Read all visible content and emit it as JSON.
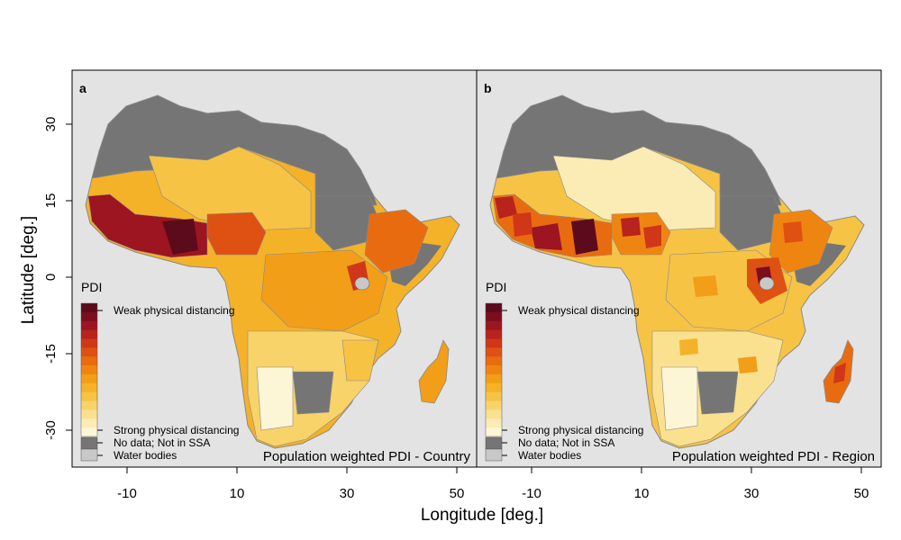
{
  "figure": {
    "ylabel": "Latitude [deg.]",
    "xlabel": "Longitude [deg.]",
    "y_ticks": [
      "30",
      "15",
      "0",
      "-15",
      "-30"
    ],
    "x_ticks": [
      "-10",
      "10",
      "30",
      "50"
    ]
  },
  "legend": {
    "title": "PDI",
    "weak": "Weak physical distancing",
    "strong": "Strong physical distancing",
    "nodata": "No data; Not in SSA",
    "water": "Water bodies",
    "colors": {
      "scale_top_to_bottom": [
        "#5c0b1c",
        "#7a0e1e",
        "#9c1520",
        "#b8231d",
        "#cf3718",
        "#de5112",
        "#e86c0f",
        "#ef8511",
        "#f29e18",
        "#f4b228",
        "#f6c345",
        "#f8d36a",
        "#fae190",
        "#fbecb6",
        "#fdf6d6"
      ],
      "nodata": "#757575",
      "water": "#c8c8c8"
    }
  },
  "panels": {
    "a": {
      "label": "a",
      "caption": "Population weighted PDI - Country"
    },
    "b": {
      "label": "b",
      "caption": "Population weighted PDI - Region"
    }
  },
  "colors": {
    "panel_bg": "#e3e3e3",
    "no_ssa": "#757575"
  }
}
